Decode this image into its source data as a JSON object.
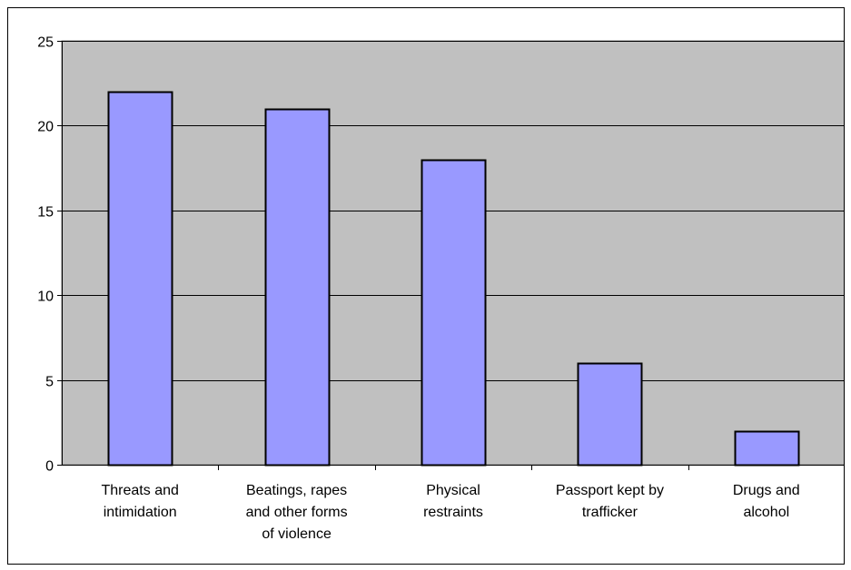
{
  "chart_data": {
    "type": "bar",
    "title": "",
    "xlabel": "",
    "ylabel": "",
    "categories": [
      "Threats and intimidation",
      "Beatings, rapes and other forms of violence",
      "Physical restraints",
      "Passport kept by trafficker",
      "Drugs and alcohol"
    ],
    "category_lines": [
      [
        "Threats and",
        "intimidation"
      ],
      [
        "Beatings, rapes",
        "and other forms",
        "of violence"
      ],
      [
        "Physical",
        "restraints"
      ],
      [
        "Passport kept by",
        "trafficker"
      ],
      [
        "Drugs and",
        "alcohol"
      ]
    ],
    "values": [
      22,
      21,
      18,
      6,
      2
    ],
    "ylim": [
      0,
      25
    ],
    "yticks": [
      0,
      5,
      10,
      15,
      20,
      25
    ],
    "grid": true,
    "legend": "none",
    "colors": {
      "bar_fill": "#9999ff",
      "bar_stroke": "#000000",
      "plot_background": "#c0c0c0",
      "gridline": "#000000"
    }
  }
}
